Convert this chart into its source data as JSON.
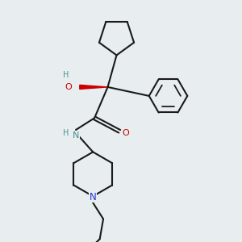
{
  "bg_color": "#e8edf0",
  "line_color": "#1a1a1a",
  "bond_width": 1.5,
  "atom_colors": {
    "O": "#cc0000",
    "N_amide": "#4a9090",
    "N_pip": "#2233cc",
    "H": "#4a9090"
  }
}
